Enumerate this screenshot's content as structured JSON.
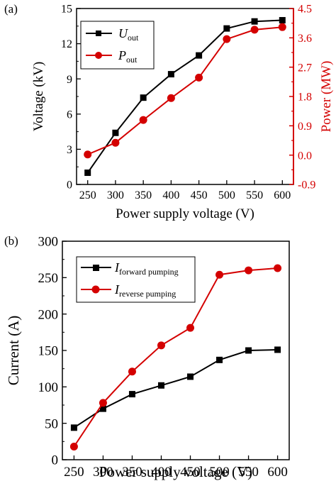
{
  "colors": {
    "black": "#000000",
    "red": "#d40000"
  },
  "panel_labels": {
    "a": "(a)",
    "b": "(b)"
  },
  "legend_a": {
    "u_main": "U",
    "u_sub": "out",
    "p_main": "P",
    "p_sub": "out"
  },
  "legend_b": {
    "f_main": "I",
    "f_sub": "forward pumping",
    "r_main": "I",
    "r_sub": "reverse pumping"
  },
  "chart_data": [
    {
      "type": "line",
      "panel": "(a)",
      "xlabel": "Power supply voltage (V)",
      "ylabel": "Voltage (kV)",
      "y2label": "Power (MW)",
      "x": [
        250,
        300,
        350,
        400,
        450,
        500,
        550,
        600
      ],
      "xlim": [
        230,
        620
      ],
      "ylim": [
        0,
        15
      ],
      "y2lim": [
        -0.9,
        4.5
      ],
      "xticks": [
        "250",
        "300",
        "350",
        "400",
        "450",
        "500",
        "550",
        "600"
      ],
      "yticks": [
        "0",
        "3",
        "6",
        "9",
        "12",
        "15"
      ],
      "y2ticks": [
        "-0.9",
        "0.0",
        "0.9",
        "1.8",
        "2.7",
        "3.6",
        "4.5"
      ],
      "legend_position": "top-left",
      "series": [
        {
          "name": "U_out",
          "axis": "left",
          "color": "#000000",
          "marker": "square",
          "values": [
            1.0,
            4.4,
            7.4,
            9.4,
            11.0,
            13.3,
            13.9,
            14.0
          ]
        },
        {
          "name": "P_out",
          "axis": "right",
          "color": "#d40000",
          "marker": "circle",
          "values": [
            0.02,
            0.38,
            1.08,
            1.75,
            2.38,
            3.56,
            3.85,
            3.93
          ]
        }
      ]
    },
    {
      "type": "line",
      "panel": "(b)",
      "xlabel": "Power supply voltage (V)",
      "ylabel": "Current (A)",
      "x": [
        250,
        300,
        350,
        400,
        450,
        500,
        550,
        600
      ],
      "xlim": [
        230,
        620
      ],
      "ylim": [
        0,
        300
      ],
      "xticks": [
        "250",
        "300",
        "350",
        "400",
        "450",
        "500",
        "550",
        "600"
      ],
      "yticks": [
        "0",
        "50",
        "100",
        "150",
        "200",
        "250",
        "300"
      ],
      "legend_position": "top-left",
      "series": [
        {
          "name": "I_forward pumping",
          "color": "#000000",
          "marker": "square",
          "values": [
            44,
            70,
            90,
            102,
            114,
            137,
            150,
            151
          ]
        },
        {
          "name": "I_reverse pumping",
          "color": "#d40000",
          "marker": "circle",
          "values": [
            18,
            78,
            121,
            157,
            181,
            254,
            260,
            263
          ]
        }
      ]
    }
  ]
}
